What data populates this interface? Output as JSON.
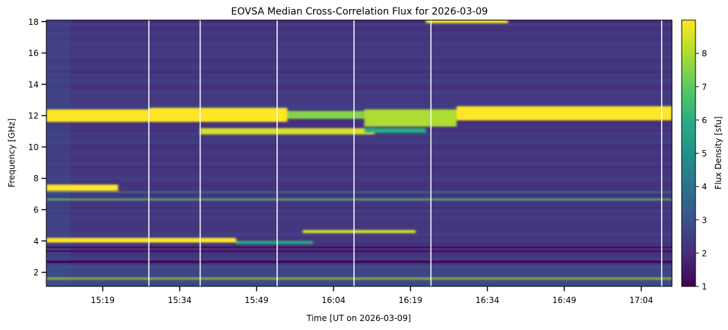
{
  "chart_data": {
    "type": "heatmap",
    "title": "EOVSA Median Cross-Correlation Flux for 2026-03-09",
    "xlabel": "Time [UT on 2026-03-09]",
    "ylabel": "Frequency [GHz]",
    "colorbar_label": "Flux Density [sfu]",
    "colormap": "viridis",
    "xlim": [
      "15:08",
      "17:10"
    ],
    "ylim": [
      1.1,
      18.1
    ],
    "clim": [
      1,
      9
    ],
    "x_ticks": [
      "15:19",
      "15:34",
      "15:49",
      "16:04",
      "16:19",
      "16:34",
      "16:49",
      "17:04"
    ],
    "y_ticks": [
      2,
      4,
      6,
      8,
      10,
      12,
      14,
      16,
      18
    ],
    "colorbar_ticks": [
      1,
      2,
      3,
      4,
      5,
      6,
      7,
      8
    ],
    "background_level": 2.3,
    "bands": [
      {
        "t_start": "15:08",
        "t_end": "15:28",
        "f_low": 11.6,
        "f_high": 12.4,
        "flux": 9
      },
      {
        "t_start": "15:28",
        "t_end": "15:55",
        "f_low": 11.6,
        "f_high": 12.5,
        "flux": 9
      },
      {
        "t_start": "15:55",
        "t_end": "16:10",
        "f_low": 11.8,
        "f_high": 12.3,
        "flux": 7.5
      },
      {
        "t_start": "16:10",
        "t_end": "16:28",
        "f_low": 11.3,
        "f_high": 12.4,
        "flux": 8
      },
      {
        "t_start": "16:28",
        "t_end": "17:10",
        "f_low": 11.7,
        "f_high": 12.6,
        "flux": 9
      },
      {
        "t_start": "15:38",
        "t_end": "16:12",
        "f_low": 10.8,
        "f_high": 11.2,
        "flux": 8.5
      },
      {
        "t_start": "16:10",
        "t_end": "16:22",
        "f_low": 10.9,
        "f_high": 11.2,
        "flux": 6
      },
      {
        "t_start": "15:08",
        "t_end": "15:22",
        "f_low": 7.2,
        "f_high": 7.6,
        "flux": 9
      },
      {
        "t_start": "15:08",
        "t_end": "15:45",
        "f_low": 3.9,
        "f_high": 4.2,
        "flux": 9
      },
      {
        "t_start": "15:45",
        "t_end": "16:00",
        "f_low": 3.8,
        "f_high": 4.0,
        "flux": 6
      },
      {
        "t_start": "15:58",
        "t_end": "16:20",
        "f_low": 4.5,
        "f_high": 4.7,
        "flux": 8.5
      },
      {
        "t_start": "16:22",
        "t_end": "16:38",
        "f_low": 17.9,
        "f_high": 18.1,
        "flux": 9
      },
      {
        "t_start": "15:08",
        "t_end": "17:10",
        "f_low": 6.6,
        "f_high": 6.7,
        "flux": 7
      },
      {
        "t_start": "15:08",
        "t_end": "17:10",
        "f_low": 1.55,
        "f_high": 1.65,
        "flux": 8
      },
      {
        "t_start": "15:08",
        "t_end": "17:10",
        "f_low": 7.1,
        "f_high": 7.15,
        "flux": 6
      }
    ],
    "dark_bands": [
      {
        "f_low": 2.6,
        "f_high": 2.75,
        "flux": 1.1
      },
      {
        "f_low": 3.3,
        "f_high": 3.4,
        "flux": 1.2
      },
      {
        "f_low": 3.55,
        "f_high": 3.65,
        "flux": 1.2
      }
    ],
    "gap_lines": [
      "15:28",
      "15:38",
      "15:53",
      "16:08",
      "16:23",
      "17:08"
    ]
  }
}
